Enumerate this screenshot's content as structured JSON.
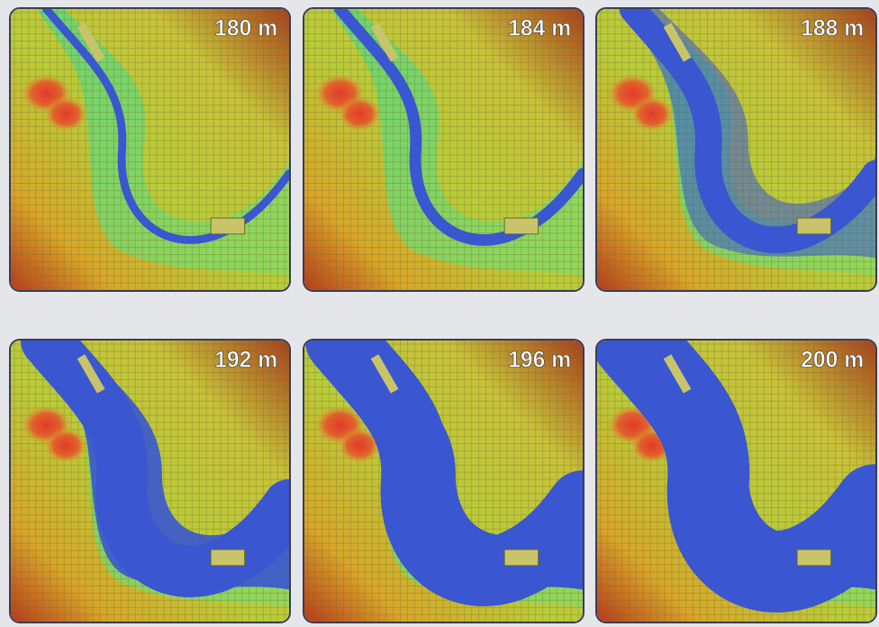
{
  "panels": [
    {
      "label": "180 m"
    },
    {
      "label": "184 m"
    },
    {
      "label": "188 m"
    },
    {
      "label": "192 m"
    },
    {
      "label": "196 m"
    },
    {
      "label": "200 m"
    }
  ]
}
